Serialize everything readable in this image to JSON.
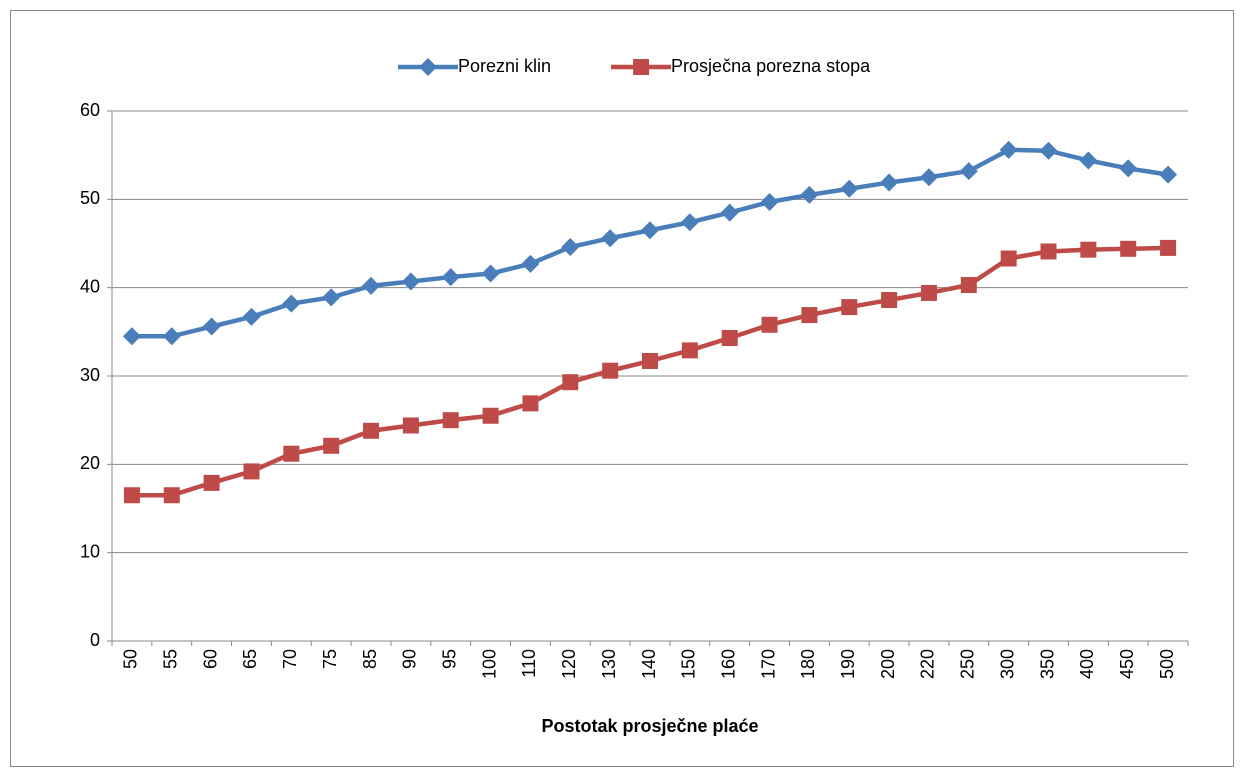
{
  "chart_data": {
    "type": "line",
    "x_label": "Postotak prosječne plaće",
    "categories": [
      "50",
      "55",
      "60",
      "65",
      "70",
      "75",
      "85",
      "90",
      "95",
      "100",
      "110",
      "120",
      "130",
      "140",
      "150",
      "160",
      "170",
      "180",
      "190",
      "200",
      "220",
      "250",
      "300",
      "350",
      "400",
      "450",
      "500"
    ],
    "series": [
      {
        "name": "Porezni klin",
        "color": "#4a7ebb",
        "marker": "diamond",
        "values": [
          34.5,
          34.5,
          35.6,
          36.7,
          38.2,
          38.9,
          40.2,
          40.7,
          41.2,
          41.6,
          42.7,
          44.6,
          45.6,
          46.5,
          47.4,
          48.5,
          49.7,
          50.5,
          51.2,
          51.9,
          52.5,
          53.2,
          55.6,
          55.5,
          54.4,
          53.5,
          52.8
        ]
      },
      {
        "name": "Prosječna porezna stopa",
        "color": "#be4b48",
        "marker": "square",
        "values": [
          16.5,
          16.5,
          17.9,
          19.2,
          21.2,
          22.1,
          23.8,
          24.4,
          25.0,
          25.5,
          26.9,
          29.3,
          30.6,
          31.7,
          32.9,
          34.3,
          35.8,
          36.9,
          37.8,
          38.6,
          39.4,
          40.3,
          43.3,
          44.1,
          44.3,
          44.4,
          44.5
        ]
      }
    ],
    "ylim": [
      0,
      60
    ],
    "yticks": [
      0,
      10,
      20,
      30,
      40,
      50,
      60
    ],
    "grid": true,
    "legend": "top"
  }
}
